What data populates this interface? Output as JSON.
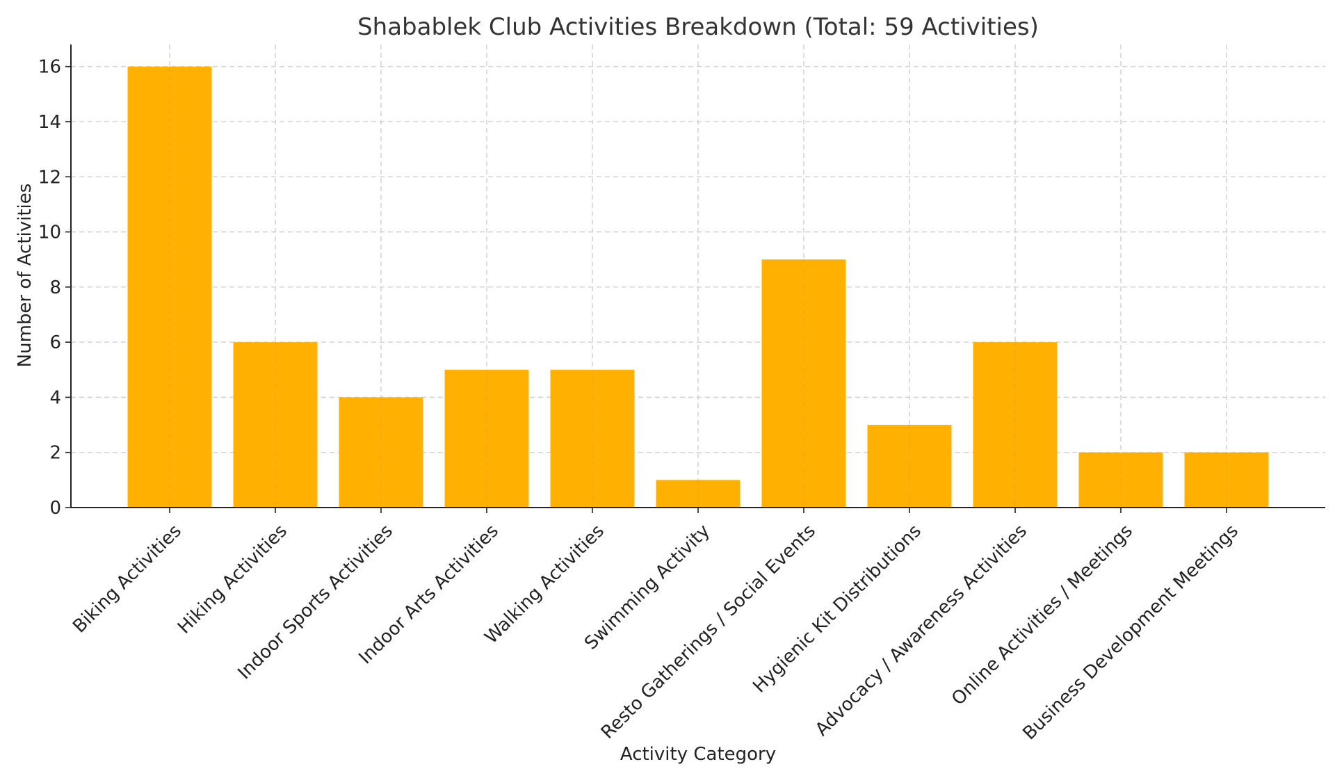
{
  "chart_data": {
    "type": "bar",
    "title": "Shabablek Club Activities Breakdown (Total: 59 Activities)",
    "xlabel": "Activity Category",
    "ylabel": "Number of Activities",
    "categories": [
      "Biking Activities",
      "Hiking Activities",
      "Indoor Sports Activities",
      "Indoor Arts Activities",
      "Walking Activities",
      "Swimming Activity",
      "Resto Gatherings / Social Events",
      "Hygienic Kit Distributions",
      "Advocacy / Awareness Activities",
      "Online Activities / Meetings",
      "Business Development Meetings"
    ],
    "values": [
      16,
      6,
      4,
      5,
      5,
      1,
      9,
      3,
      6,
      2,
      2
    ],
    "ylim": [
      0,
      16.8
    ],
    "yticks": [
      0,
      2,
      4,
      6,
      8,
      10,
      12,
      14,
      16
    ],
    "grid": true,
    "bar_color": "#ffb000"
  }
}
